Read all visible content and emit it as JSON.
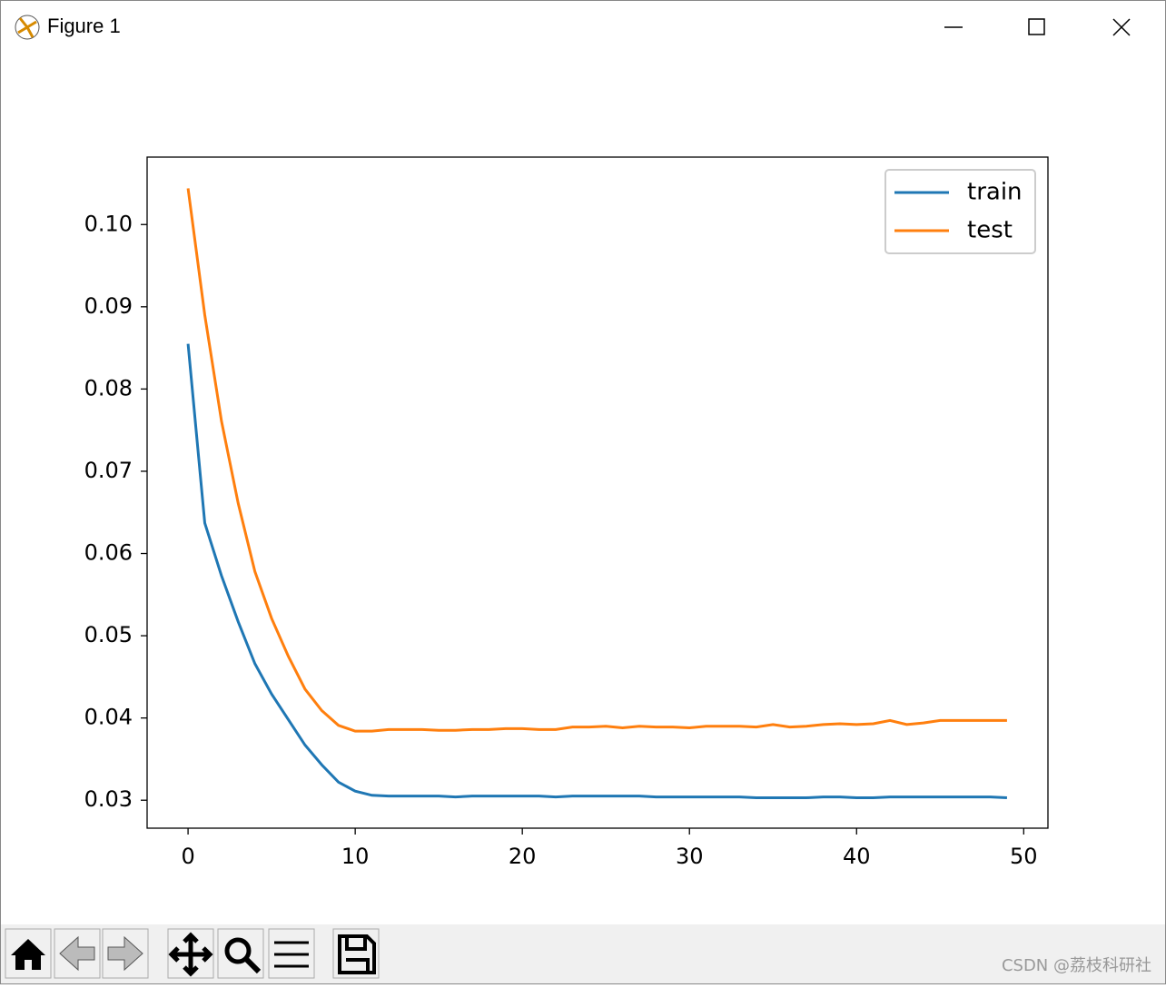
{
  "window": {
    "title": "Figure 1"
  },
  "watermark": "CSDN @荔枝科研社",
  "chart_data": {
    "type": "line",
    "x": [
      0,
      1,
      2,
      3,
      4,
      5,
      6,
      7,
      8,
      9,
      10,
      11,
      12,
      13,
      14,
      15,
      16,
      17,
      18,
      19,
      20,
      21,
      22,
      23,
      24,
      25,
      26,
      27,
      28,
      29,
      30,
      31,
      32,
      33,
      34,
      35,
      36,
      37,
      38,
      39,
      40,
      41,
      42,
      43,
      44,
      45,
      46,
      47,
      48,
      49
    ],
    "series": [
      {
        "name": "train",
        "color": "#1f77b4",
        "values": [
          0.0855,
          0.0637,
          0.0573,
          0.0517,
          0.0466,
          0.0429,
          0.0398,
          0.0367,
          0.0343,
          0.0322,
          0.0311,
          0.0306,
          0.0305,
          0.0305,
          0.0305,
          0.0305,
          0.0304,
          0.0305,
          0.0305,
          0.0305,
          0.0305,
          0.0305,
          0.0304,
          0.0305,
          0.0305,
          0.0305,
          0.0305,
          0.0305,
          0.0304,
          0.0304,
          0.0304,
          0.0304,
          0.0304,
          0.0304,
          0.0303,
          0.0303,
          0.0303,
          0.0303,
          0.0304,
          0.0304,
          0.0303,
          0.0303,
          0.0304,
          0.0304,
          0.0304,
          0.0304,
          0.0304,
          0.0304,
          0.0304,
          0.0303
        ]
      },
      {
        "name": "test",
        "color": "#ff7f0e",
        "values": [
          0.1044,
          0.089,
          0.0761,
          0.0661,
          0.0578,
          0.0521,
          0.0475,
          0.0435,
          0.0409,
          0.0391,
          0.0384,
          0.0384,
          0.0386,
          0.0386,
          0.0386,
          0.0385,
          0.0385,
          0.0386,
          0.0386,
          0.0387,
          0.0387,
          0.0386,
          0.0386,
          0.0389,
          0.0389,
          0.039,
          0.0388,
          0.039,
          0.0389,
          0.0389,
          0.0388,
          0.039,
          0.039,
          0.039,
          0.0389,
          0.0392,
          0.0389,
          0.039,
          0.0392,
          0.0393,
          0.0392,
          0.0393,
          0.0397,
          0.0392,
          0.0394,
          0.0397,
          0.0397,
          0.0397,
          0.0397,
          0.0397
        ]
      }
    ],
    "xlim": [
      -2.45,
      51.45
    ],
    "xticks": [
      0,
      10,
      20,
      30,
      40,
      50
    ],
    "ylim": [
      0.0266,
      0.1082
    ],
    "yticks": [
      0.03,
      0.04,
      0.05,
      0.06,
      0.07,
      0.08,
      0.09,
      {
        "value": 0.1,
        "label": "0.10"
      }
    ],
    "legend": "upper right"
  }
}
